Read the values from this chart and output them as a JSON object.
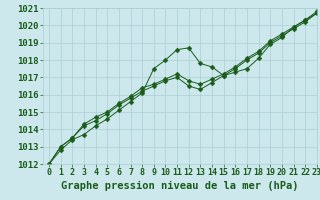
{
  "xlabel": "Graphe pression niveau de la mer (hPa)",
  "x": [
    0,
    1,
    2,
    3,
    4,
    5,
    6,
    7,
    8,
    9,
    10,
    11,
    12,
    13,
    14,
    15,
    16,
    17,
    18,
    19,
    20,
    21,
    22,
    23
  ],
  "line1": [
    1012.0,
    1012.8,
    1013.4,
    1013.7,
    1014.2,
    1014.6,
    1015.1,
    1015.6,
    1016.1,
    1017.5,
    1018.0,
    1018.6,
    1018.7,
    1017.8,
    1017.6,
    1017.1,
    1017.3,
    1017.5,
    1018.1,
    1018.9,
    1019.3,
    1019.9,
    1020.3,
    1020.7
  ],
  "line2": [
    1012.0,
    1013.0,
    1013.5,
    1014.3,
    1014.7,
    1015.0,
    1015.5,
    1015.9,
    1016.4,
    1016.6,
    1016.9,
    1017.2,
    1016.8,
    1016.6,
    1016.9,
    1017.2,
    1017.6,
    1018.1,
    1018.5,
    1019.1,
    1019.5,
    1019.9,
    1020.3,
    1020.8
  ],
  "line3": [
    1012.0,
    1013.0,
    1013.5,
    1014.2,
    1014.5,
    1014.9,
    1015.4,
    1015.8,
    1016.2,
    1016.5,
    1016.8,
    1017.0,
    1016.5,
    1016.3,
    1016.7,
    1017.1,
    1017.5,
    1018.0,
    1018.4,
    1019.0,
    1019.4,
    1019.8,
    1020.2,
    1020.7
  ],
  "ylim": [
    1012,
    1021
  ],
  "xlim": [
    -0.5,
    23
  ],
  "bg_color": "#cce8ec",
  "grid_color": "#aacfd4",
  "line_color": "#1a5c1a",
  "marker": "D",
  "marker_size": 2.5,
  "label_color": "#1a5c1a",
  "xlabel_fontsize": 7.5,
  "ytick_fontsize": 6.5,
  "xtick_fontsize": 6.0
}
